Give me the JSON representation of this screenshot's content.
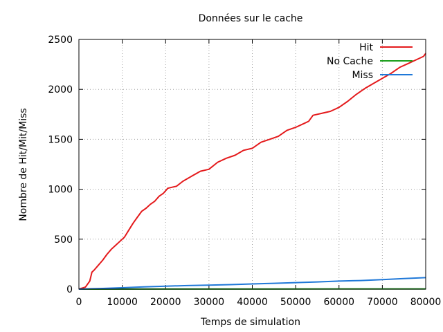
{
  "chart_data": {
    "type": "line",
    "title": "Données sur le cache",
    "xlabel": "Temps de simulation",
    "ylabel": "Nombre de Hit/Mit/Miss",
    "xlim": [
      0,
      80000
    ],
    "ylim": [
      0,
      2500
    ],
    "xticks": [
      0,
      10000,
      20000,
      30000,
      40000,
      50000,
      60000,
      70000,
      80000
    ],
    "yticks": [
      0,
      500,
      1000,
      1500,
      2000,
      2500
    ],
    "xtick_labels": [
      "0",
      "10000",
      "20000",
      "30000",
      "40000",
      "50000",
      "60000",
      "70000",
      "80000"
    ],
    "ytick_labels": [
      "0",
      "500",
      "1000",
      "1500",
      "2000",
      "2500"
    ],
    "grid": true,
    "legend_position": "top-right",
    "series": [
      {
        "name": "Hit",
        "color": "#e41a1c",
        "x": [
          0,
          1500,
          2500,
          3000,
          3500,
          4500,
          5500,
          6500,
          7500,
          8500,
          9500,
          10500,
          11500,
          12500,
          13500,
          14500,
          15500,
          16500,
          17500,
          18500,
          19500,
          20500,
          21500,
          22500,
          24000,
          26000,
          28000,
          30000,
          32000,
          34000,
          36000,
          38000,
          40000,
          42000,
          44000,
          46000,
          48000,
          50000,
          52000,
          53000,
          54000,
          56000,
          58000,
          59000,
          60000,
          62000,
          64000,
          66000,
          68000,
          70000,
          72000,
          74000,
          76000,
          78000,
          79500,
          80000
        ],
        "y": [
          0,
          20,
          80,
          170,
          190,
          240,
          290,
          350,
          400,
          440,
          480,
          520,
          590,
          660,
          720,
          780,
          810,
          850,
          880,
          930,
          960,
          1010,
          1020,
          1030,
          1080,
          1130,
          1180,
          1200,
          1270,
          1310,
          1340,
          1390,
          1410,
          1470,
          1500,
          1530,
          1590,
          1620,
          1660,
          1680,
          1740,
          1760,
          1780,
          1800,
          1820,
          1880,
          1950,
          2010,
          2060,
          2110,
          2160,
          2220,
          2260,
          2300,
          2330,
          2360
        ]
      },
      {
        "name": "No Cache",
        "color": "#1a9e1a",
        "x": [
          0,
          20000,
          40000,
          60000,
          80000
        ],
        "y": [
          0,
          1,
          1,
          2,
          2
        ]
      },
      {
        "name": "Miss",
        "color": "#1f78d8",
        "x": [
          0,
          5000,
          10000,
          15000,
          20000,
          25000,
          30000,
          35000,
          40000,
          45000,
          50000,
          55000,
          60000,
          65000,
          70000,
          75000,
          80000
        ],
        "y": [
          0,
          6,
          14,
          22,
          30,
          35,
          40,
          45,
          52,
          58,
          65,
          72,
          80,
          86,
          95,
          105,
          115
        ]
      }
    ]
  }
}
